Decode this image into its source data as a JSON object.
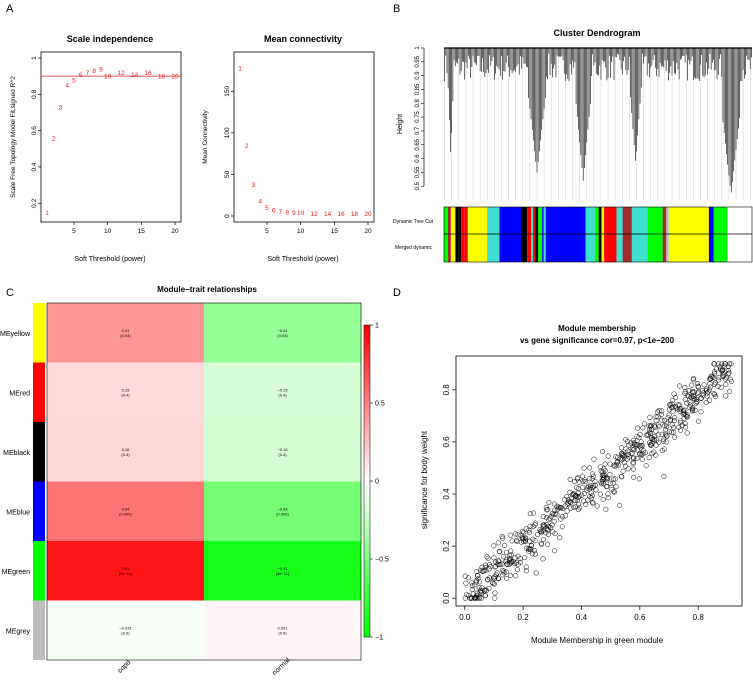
{
  "panel_labels": [
    "A",
    "B",
    "C",
    "D"
  ],
  "chart_data": [
    {
      "id": "scale_independence",
      "type": "scatter",
      "title": "Scale independence",
      "xlabel": "Soft Threshold (power)",
      "ylabel": "Scale Free Topology Model Fit,signed R^2",
      "xlim": [
        1,
        20
      ],
      "ylim": [
        0.13,
        1.0
      ],
      "xticks": [
        5,
        10,
        15,
        20
      ],
      "yticks": [
        0.2,
        0.4,
        0.6,
        0.8,
        1.0
      ],
      "x": [
        1,
        2,
        3,
        4,
        5,
        6,
        7,
        8,
        9,
        10,
        12,
        14,
        16,
        18,
        20
      ],
      "y": [
        0.15,
        0.56,
        0.73,
        0.85,
        0.88,
        0.91,
        0.92,
        0.93,
        0.94,
        0.9,
        0.92,
        0.91,
        0.92,
        0.9,
        0.9
      ],
      "point_labels": [
        "1",
        "2",
        "3",
        "4",
        "5",
        "6",
        "7",
        "8",
        "9",
        "10",
        "12",
        "14",
        "16",
        "18",
        "20"
      ],
      "hline": 0.9,
      "color": "#e41a1c"
    },
    {
      "id": "mean_connectivity",
      "type": "scatter",
      "title": "Mean connectivity",
      "xlabel": "Soft Threshold (power)",
      "ylabel": "Mean Connectivity",
      "xlim": [
        1,
        20
      ],
      "ylim": [
        0,
        190
      ],
      "xticks": [
        5,
        10,
        15,
        20
      ],
      "yticks": [
        0,
        50,
        100,
        150
      ],
      "x": [
        1,
        2,
        3,
        4,
        5,
        6,
        7,
        8,
        9,
        10,
        12,
        14,
        16,
        18,
        20
      ],
      "y": [
        178,
        85,
        38,
        18,
        10,
        7,
        6,
        5,
        4,
        4,
        3,
        3,
        3,
        3,
        3
      ],
      "point_labels": [
        "1",
        "2",
        "3",
        "4",
        "5",
        "6",
        "7",
        "8",
        "9",
        "10",
        "12",
        "14",
        "16",
        "18",
        "20"
      ],
      "color": "#e41a1c"
    },
    {
      "id": "cluster_dendrogram",
      "type": "dendrogram",
      "title": "Cluster Dendrogram",
      "ylabel": "Height",
      "ylim": [
        0.45,
        1.0
      ],
      "yticks": [
        0.5,
        0.55,
        0.6,
        0.65,
        0.7,
        0.75,
        0.8,
        0.85,
        0.9,
        0.95,
        1.0
      ],
      "color_bar_labels": [
        "Dynamic Tree Cut",
        "Merged dynamic"
      ],
      "module_blocks": [
        {
          "color": "grey",
          "share": 0.08
        },
        {
          "color": "yellow",
          "share": 0.06
        },
        {
          "color": "turquoise",
          "share": 0.04
        },
        {
          "color": "blue",
          "share": 0.07
        },
        {
          "color": "black",
          "share": 0.02
        },
        {
          "color": "grey",
          "share": 0.06
        },
        {
          "color": "blue",
          "share": 0.13
        },
        {
          "color": "turquoise",
          "share": 0.03
        },
        {
          "color": "grey",
          "share": 0.03
        },
        {
          "color": "red",
          "share": 0.04
        },
        {
          "color": "turquoise",
          "share": 0.02
        },
        {
          "color": "brown",
          "share": 0.03
        },
        {
          "color": "turquoise",
          "share": 0.05
        },
        {
          "color": "green",
          "share": 0.05
        },
        {
          "color": "grey",
          "share": 0.02
        },
        {
          "color": "yellow",
          "share": 0.12
        },
        {
          "color": "grey",
          "share": 0.03
        },
        {
          "color": "green",
          "share": 0.04
        }
      ]
    },
    {
      "id": "module_trait",
      "type": "heatmap",
      "title": "Module−trait relationships",
      "rows": [
        "MEyellow",
        "MEred",
        "MEblack",
        "MEblue",
        "MEgreen",
        "MEgrey"
      ],
      "row_colors": [
        "#ffff00",
        "#ff0000",
        "#000000",
        "#0000ff",
        "#00ff00",
        "#bebebe"
      ],
      "columns": [
        "copd",
        "normal"
      ],
      "values": [
        [
          0.41,
          -0.41
        ],
        [
          0.15,
          -0.15
        ],
        [
          0.16,
          -0.16
        ],
        [
          0.54,
          -0.54
        ],
        [
          0.91,
          -0.91
        ],
        [
          -0.031,
          0.031
        ]
      ],
      "cell_labels": [
        [
          "0.41\n(0.04)",
          "−0.41\n(0.04)"
        ],
        [
          "0.15\n(0.4)",
          "−0.15\n(0.4)"
        ],
        [
          "0.16\n(0.4)",
          "−0.16\n(0.4)"
        ],
        [
          "0.54\n(0.005)",
          "−0.54\n(0.005)"
        ],
        [
          "0.91\n(3e−11)",
          "−0.91\n(3e−11)"
        ],
        [
          "−0.031\n(0.9)",
          "0.031\n(0.9)"
        ]
      ],
      "colorbar_ticks": [
        "1",
        "0.5",
        "0",
        "−0.5",
        "−1"
      ],
      "colorbar_values": [
        1,
        0.5,
        0,
        -0.5,
        -1
      ],
      "colormap": [
        "#00ff00",
        "#ffffff",
        "#ff0000"
      ]
    },
    {
      "id": "module_membership",
      "type": "scatter",
      "title": "Module membership",
      "subtitle": "vs gene significance cor=0.97, p<1e−200",
      "xlabel": "Module Membership in green module",
      "ylabel": "significance for body weight",
      "xlim": [
        -0.03,
        0.95
      ],
      "ylim": [
        -0.03,
        0.93
      ],
      "xticks": [
        0.0,
        0.2,
        0.4,
        0.6,
        0.8
      ],
      "yticks": [
        0.0,
        0.2,
        0.4,
        0.6,
        0.8
      ],
      "n_points": 620,
      "fit": {
        "slope": 0.96,
        "intercept": 0.005,
        "noise_sd": 0.045,
        "x_range": [
          0.0,
          0.92
        ]
      }
    }
  ]
}
